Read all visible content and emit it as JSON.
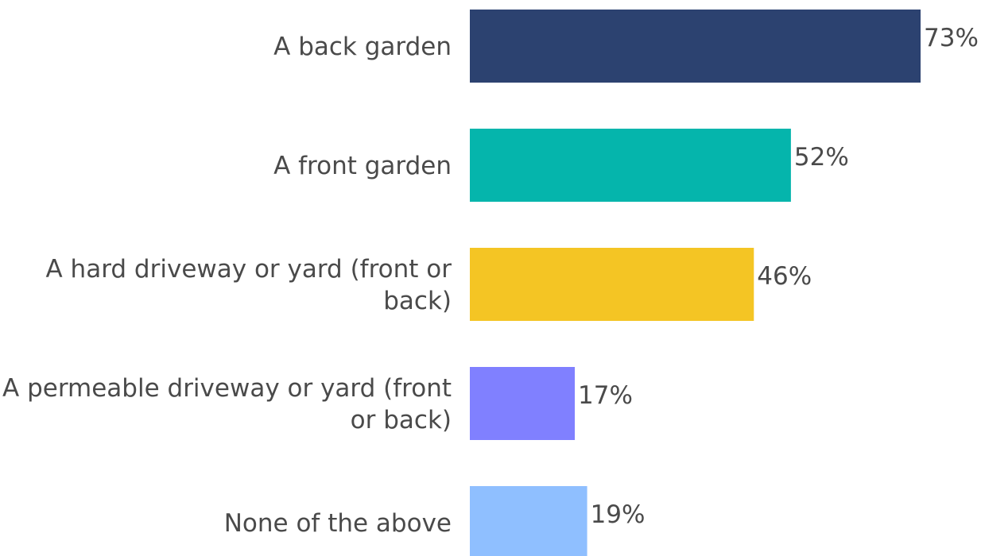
{
  "chart_data": {
    "type": "bar",
    "orientation": "horizontal",
    "title": "",
    "xlabel": "",
    "ylabel": "",
    "xlim": [
      0,
      80
    ],
    "grid": false,
    "legend": "none",
    "unit": "%",
    "categories": [
      "A back garden",
      "A front garden",
      "A hard driveway or yard (front or back)",
      "A permeable driveway or yard (front or back)",
      "None of the above"
    ],
    "category_label_lines": [
      [
        "A back garden"
      ],
      [
        "A front garden"
      ],
      [
        "A hard driveway or yard (front or",
        "back)"
      ],
      [
        "A permeable driveway or yard (front",
        "or back)"
      ],
      [
        "None of the above"
      ]
    ],
    "values": [
      73,
      52,
      46,
      17,
      19
    ],
    "value_labels": [
      "73%",
      "52%",
      "46%",
      "17%",
      "19%"
    ],
    "colors": [
      "#2c4270",
      "#05b5ac",
      "#f4c524",
      "#8080ff",
      "#8fbfff"
    ]
  }
}
